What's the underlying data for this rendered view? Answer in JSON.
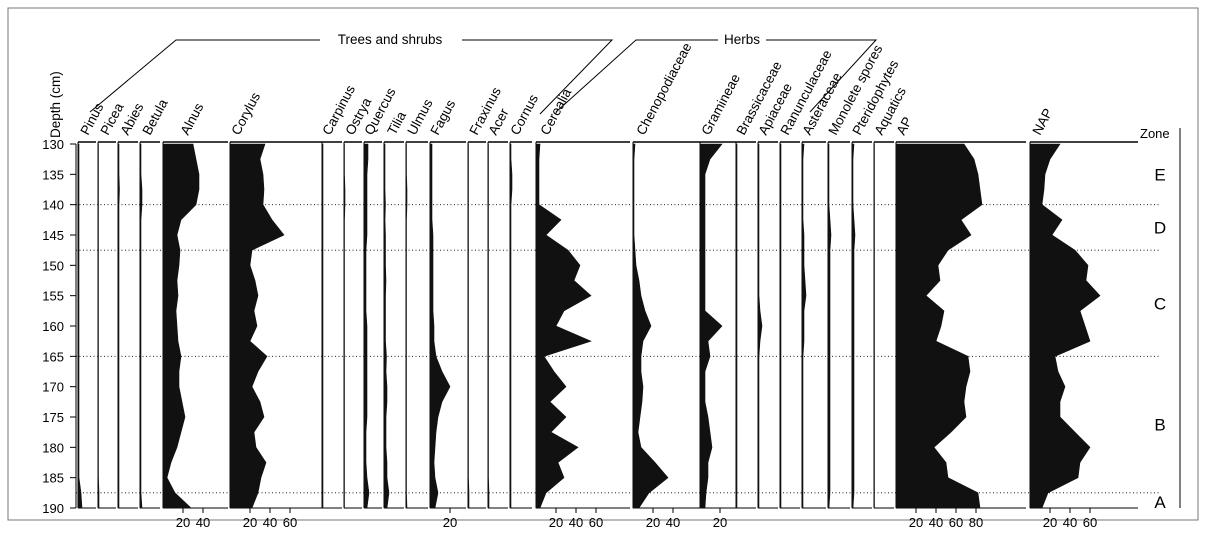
{
  "chart_data": {
    "type": "area",
    "title": "",
    "ylabel": "Depth (cm)",
    "depth_ticks": [
      130,
      135,
      140,
      145,
      150,
      155,
      160,
      165,
      170,
      175,
      180,
      185,
      190
    ],
    "ylim": [
      130,
      190
    ],
    "depths": [
      130,
      132.5,
      135,
      137.5,
      140,
      142.5,
      145,
      147.5,
      150,
      152.5,
      155,
      157.5,
      160,
      162.5,
      165,
      167.5,
      170,
      172.5,
      175,
      177.5,
      180,
      182.5,
      185,
      187.5,
      190
    ],
    "group_labels": [
      {
        "label": "Trees and shrubs"
      },
      {
        "label": "Herbs"
      }
    ],
    "series": [
      {
        "name": "Pinus",
        "values": [
          1,
          1,
          1,
          1,
          1,
          1,
          1,
          1,
          1,
          1,
          1,
          1,
          1,
          1,
          1,
          1,
          1,
          1,
          1,
          1,
          1,
          1,
          1,
          3,
          4
        ],
        "ticks": []
      },
      {
        "name": "Picea",
        "values": [
          0.5,
          0.5,
          0.5,
          0.5,
          0.5,
          0.5,
          0.5,
          0.5,
          0.5,
          0.5,
          0.5,
          0.5,
          0.5,
          0.5,
          0.5,
          0.5,
          0.5,
          0.5,
          0.5,
          0.5,
          0.5,
          0.5,
          0.5,
          1,
          1
        ],
        "ticks": []
      },
      {
        "name": "Abies",
        "values": [
          1,
          1,
          1,
          1.5,
          1,
          1,
          1,
          1,
          1,
          1,
          1,
          1,
          1,
          1,
          1,
          1,
          1,
          1,
          1,
          1,
          1,
          1,
          1,
          1,
          1
        ],
        "ticks": []
      },
      {
        "name": "Betula",
        "values": [
          1,
          1,
          1,
          2,
          2,
          1,
          1,
          1,
          1,
          1,
          1,
          1,
          1,
          1,
          1,
          1,
          1,
          1,
          1,
          1,
          1,
          1,
          1,
          1,
          2
        ],
        "ticks": []
      },
      {
        "name": "Alnus",
        "values": [
          30,
          33,
          36,
          36,
          33,
          18,
          14,
          17,
          16,
          14,
          15,
          13,
          14,
          15,
          18,
          16,
          16,
          19,
          22,
          18,
          14,
          8,
          4,
          12,
          28
        ],
        "ticks": [
          20,
          40
        ]
      },
      {
        "name": "Corylus",
        "values": [
          35,
          30,
          33,
          34,
          33,
          42,
          54,
          22,
          20,
          25,
          28,
          24,
          27,
          20,
          37,
          28,
          22,
          30,
          34,
          24,
          26,
          36,
          31,
          28,
          22
        ],
        "ticks": [
          20,
          40,
          60
        ]
      },
      {
        "name": "Carpinus",
        "values": [
          1,
          1,
          1,
          1,
          1,
          1,
          1,
          1,
          1,
          1,
          1,
          1,
          1,
          1,
          1,
          1,
          1,
          1,
          1,
          1,
          1,
          1,
          1,
          1,
          1
        ],
        "ticks": []
      },
      {
        "name": "Ostrya",
        "values": [
          0.5,
          0.5,
          0.5,
          1,
          1,
          0.5,
          0.5,
          0.5,
          0.5,
          0.5,
          0.5,
          0.5,
          0.5,
          0.5,
          0.5,
          0.5,
          0.5,
          0.5,
          0.5,
          0.5,
          0.5,
          0.5,
          0.5,
          0.5,
          0.5
        ],
        "ticks": []
      },
      {
        "name": "Quercus",
        "values": [
          4,
          4,
          3,
          3,
          3,
          3,
          3,
          2,
          2,
          2,
          2,
          2,
          3,
          3,
          3,
          3,
          3,
          3,
          3,
          2,
          2,
          2,
          3,
          5,
          3
        ],
        "ticks": []
      },
      {
        "name": "Tilia",
        "values": [
          1,
          1,
          1,
          1,
          1.5,
          1,
          1.5,
          1.5,
          1.5,
          2,
          1.5,
          1.5,
          1.5,
          1.5,
          2.5,
          2,
          3,
          3,
          2,
          2,
          2,
          3,
          3,
          5,
          3
        ],
        "ticks": []
      },
      {
        "name": "Ulmus",
        "values": [
          0.5,
          0.5,
          0.5,
          1,
          1,
          0.5,
          0.5,
          0.5,
          0.5,
          0.5,
          0.5,
          0.5,
          0.5,
          0.5,
          0.5,
          0.5,
          0.5,
          0.5,
          0.5,
          0.5,
          0.5,
          0.5,
          0.5,
          0.5,
          1
        ],
        "ticks": []
      },
      {
        "name": "Fagus",
        "values": [
          2,
          2,
          2,
          2,
          2,
          2,
          3,
          3,
          3,
          3,
          3,
          3,
          4,
          4,
          6,
          12,
          20,
          12,
          8,
          6,
          5,
          4,
          5,
          8,
          5
        ],
        "ticks": [
          20
        ]
      },
      {
        "name": "Fraxinus",
        "values": [
          0.5,
          0.5,
          0.5,
          0.5,
          0.5,
          0.5,
          0.5,
          0.5,
          0.5,
          0.5,
          0.5,
          0.5,
          0.5,
          0.5,
          0.5,
          0.5,
          0.5,
          0.5,
          0.5,
          0.5,
          0.5,
          0.5,
          0.5,
          1,
          1
        ],
        "ticks": []
      },
      {
        "name": "Acer",
        "values": [
          0.5,
          0.5,
          0.5,
          0.5,
          0.5,
          0.5,
          0.5,
          0.5,
          0.5,
          0.5,
          0.5,
          0.5,
          0.5,
          0.5,
          0.5,
          0.5,
          0.5,
          0.5,
          0.5,
          0.5,
          0.5,
          0.5,
          0.5,
          1,
          1
        ],
        "ticks": []
      },
      {
        "name": "Cornus",
        "values": [
          1,
          1,
          2,
          2,
          1,
          1,
          1,
          1,
          1,
          1,
          1,
          1,
          1,
          1,
          1,
          1,
          1,
          1,
          1,
          1,
          1,
          1,
          1,
          1,
          1
        ],
        "ticks": []
      },
      {
        "name": "Cerealia",
        "values": [
          4,
          3,
          3,
          3,
          3,
          25,
          10,
          32,
          44,
          38,
          55,
          28,
          20,
          55,
          8,
          18,
          30,
          14,
          30,
          15,
          42,
          22,
          28,
          10,
          4
        ],
        "ticks": [
          20,
          40,
          60
        ]
      },
      {
        "name": "Chenopodiaceae",
        "values": [
          2,
          1,
          1,
          1,
          1,
          1,
          1,
          2,
          3,
          6,
          8,
          12,
          18,
          10,
          8,
          8,
          10,
          9,
          7,
          5,
          8,
          22,
          35,
          16,
          6
        ],
        "ticks": [
          20,
          40
        ]
      },
      {
        "name": "Gramineae",
        "values": [
          22,
          10,
          5,
          5,
          5,
          5,
          5,
          5,
          5,
          5,
          5,
          5,
          22,
          8,
          10,
          5,
          5,
          5,
          8,
          10,
          12,
          8,
          8,
          6,
          5
        ],
        "ticks": [
          20
        ]
      },
      {
        "name": "Brassicaceae",
        "values": [
          1,
          1,
          1,
          1,
          1,
          1,
          1,
          1,
          1,
          1,
          1,
          1,
          1,
          1,
          1,
          1,
          1,
          1,
          1,
          1,
          1,
          1,
          1,
          1,
          1
        ],
        "ticks": []
      },
      {
        "name": "Apiaceae",
        "values": [
          1,
          1,
          1,
          1,
          1,
          1,
          1,
          1,
          1,
          1,
          1,
          2,
          4,
          2,
          1,
          1,
          1,
          1,
          1,
          1,
          1,
          1,
          1,
          1,
          1
        ],
        "ticks": []
      },
      {
        "name": "Ranunculaceae",
        "values": [
          1,
          1,
          1,
          1,
          1,
          1,
          1,
          1,
          1,
          1,
          1,
          1,
          1,
          1,
          1,
          1,
          1,
          1,
          1,
          1,
          1,
          1,
          1,
          1,
          1
        ],
        "ticks": []
      },
      {
        "name": "Asteraceae",
        "values": [
          2,
          1,
          1,
          1,
          1,
          1,
          2,
          2,
          2,
          3,
          4,
          2,
          2,
          2,
          1,
          1,
          1,
          1,
          1,
          1,
          1,
          1,
          1,
          1,
          1
        ],
        "ticks": []
      },
      {
        "name": "Monolete spores",
        "values": [
          1,
          1,
          1,
          1,
          1,
          2,
          3,
          2,
          2,
          2,
          2,
          2,
          2,
          2,
          2,
          2,
          2,
          2,
          2,
          2,
          2,
          2,
          2,
          2,
          1
        ],
        "ticks": []
      },
      {
        "name": "Pteridophytes",
        "values": [
          2,
          1,
          1,
          1,
          1,
          2,
          3,
          2,
          2,
          2,
          2,
          2,
          2,
          2,
          2,
          2,
          2,
          2,
          2,
          2,
          2,
          2,
          2,
          2,
          1
        ],
        "ticks": []
      },
      {
        "name": "Aquatics",
        "values": [
          0.5,
          0.5,
          0.5,
          0.5,
          0.5,
          0.5,
          0.5,
          0.5,
          0.5,
          0.5,
          0.5,
          0.5,
          0.5,
          0.5,
          0.5,
          0.5,
          0.5,
          0.5,
          0.5,
          0.5,
          0.5,
          0.5,
          0.5,
          0.5,
          0.5
        ],
        "ticks": []
      },
      {
        "name": "AP",
        "values": [
          68,
          78,
          82,
          84,
          86,
          65,
          75,
          52,
          42,
          44,
          30,
          48,
          45,
          40,
          72,
          74,
          70,
          68,
          70,
          55,
          38,
          50,
          52,
          82,
          84
        ],
        "ticks": [
          20,
          40,
          60,
          80
        ]
      },
      {
        "name": "NAP",
        "values": [
          30,
          20,
          15,
          14,
          12,
          32,
          22,
          45,
          58,
          56,
          70,
          50,
          55,
          60,
          25,
          28,
          35,
          30,
          30,
          45,
          60,
          50,
          48,
          18,
          12
        ],
        "ticks": [
          20,
          40,
          60
        ]
      }
    ],
    "zones": [
      "E",
      "D",
      "C",
      "B",
      "A"
    ],
    "zone_header": "Zone"
  }
}
